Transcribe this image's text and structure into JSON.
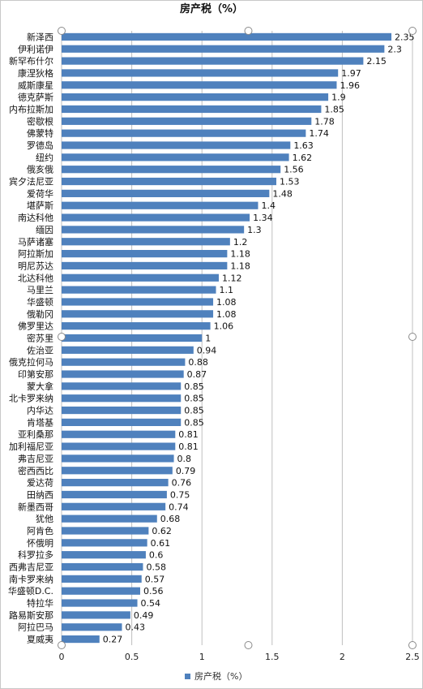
{
  "chart_data": {
    "type": "bar",
    "orientation": "horizontal",
    "title": "房产税（%）",
    "categories": [
      "新泽西",
      "伊利诺伊",
      "新罕布什尔",
      "康涅狄格",
      "威斯康星",
      "德克萨斯",
      "内布拉斯加",
      "密歇根",
      "佛蒙特",
      "罗德岛",
      "纽约",
      "俄亥俄",
      "宾夕法尼亚",
      "爱荷华",
      "堪萨斯",
      "南达科他",
      "缅因",
      "马萨诸塞",
      "阿拉斯加",
      "明尼苏达",
      "北达科他",
      "马里兰",
      "华盛顿",
      "俄勒冈",
      "佛罗里达",
      "密苏里",
      "佐治亚",
      "俄克拉何马",
      "印第安那",
      "蒙大拿",
      "北卡罗来纳",
      "内华达",
      "肯塔基",
      "亚利桑那",
      "加利福尼亚",
      "弗吉尼亚",
      "密西西比",
      "爱达荷",
      "田纳西",
      "新墨西哥",
      "犹他",
      "阿肯色",
      "怀俄明",
      "科罗拉多",
      "西弗吉尼亚",
      "南卡罗来纳",
      "华盛顿D.C.",
      "特拉华",
      "路易斯安那",
      "阿拉巴马",
      "夏威夷"
    ],
    "series": [
      {
        "name": "房产税（%）",
        "color": "#4f81bd",
        "values": [
          2.35,
          2.3,
          2.15,
          1.97,
          1.96,
          1.9,
          1.85,
          1.78,
          1.74,
          1.63,
          1.62,
          1.56,
          1.53,
          1.48,
          1.4,
          1.34,
          1.3,
          1.2,
          1.18,
          1.18,
          1.12,
          1.1,
          1.08,
          1.08,
          1.06,
          1,
          0.94,
          0.88,
          0.87,
          0.85,
          0.85,
          0.85,
          0.85,
          0.81,
          0.81,
          0.8,
          0.79,
          0.76,
          0.75,
          0.74,
          0.68,
          0.62,
          0.61,
          0.6,
          0.58,
          0.57,
          0.56,
          0.54,
          0.49,
          0.43,
          0.27
        ]
      }
    ],
    "value_labels": [
      "2.35",
      "2.3",
      "2.15",
      "1.97",
      "1.96",
      "1.9",
      "1.85",
      "1.78",
      "1.74",
      "1.63",
      "1.62",
      "1.56",
      "1.53",
      "1.48",
      "1.4",
      "1.34",
      "1.3",
      "1.2",
      "1.18",
      "1.18",
      "1.12",
      "1.1",
      "1.08",
      "1.08",
      "1.06",
      "1",
      "0.94",
      "0.88",
      "0.87",
      "0.85",
      "0.85",
      "0.85",
      "0.85",
      "0.81",
      "0.81",
      "0.8",
      "0.79",
      "0.76",
      "0.75",
      "0.74",
      "0.68",
      "0.62",
      "0.61",
      "0.6",
      "0.58",
      "0.57",
      "0.56",
      "0.54",
      "0.49",
      "0.43",
      "0.27"
    ],
    "xlim": [
      0,
      2.5
    ],
    "xticks": [
      "0",
      "0.5",
      "1",
      "1.5",
      "2",
      "2.5"
    ],
    "grid": true,
    "legend": {
      "position": "bottom",
      "label": "房产税（%）"
    }
  }
}
